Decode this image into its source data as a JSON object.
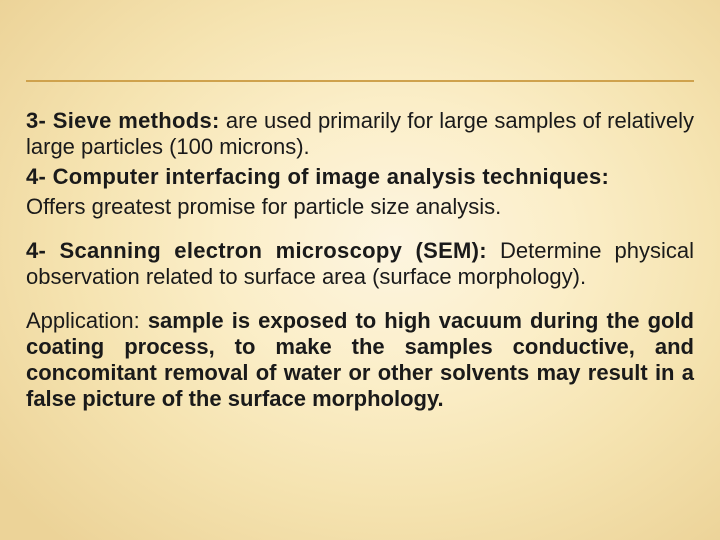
{
  "slide": {
    "background_colors": {
      "center": "#fdf5e0",
      "inner": "#fbeec8",
      "mid": "#f5e3b0",
      "edge": "#ecd398"
    },
    "rule_color": "#cfa24d",
    "text_color": "#1a1a1a",
    "font_size_pt": 17,
    "paragraphs": {
      "p3": {
        "label": "3- Sieve methods:",
        "body": " are used primarily for large samples of relatively large particles (100 microns)."
      },
      "p4a": {
        "label": "4- Computer interfacing of image analysis techniques:"
      },
      "p4a_body": "Offers greatest promise for particle size analysis.",
      "p4b": {
        "label": "4- Scanning electron microscopy (SEM):",
        "body": " Determine physical observation related to surface area (surface morphology)."
      },
      "p_app": {
        "lead": "Application: ",
        "bold": "sample is exposed to high vacuum during the gold coating process, to make the samples conductive, and concomitant removal of water or other solvents may result in a false picture of the surface morphology."
      }
    }
  }
}
